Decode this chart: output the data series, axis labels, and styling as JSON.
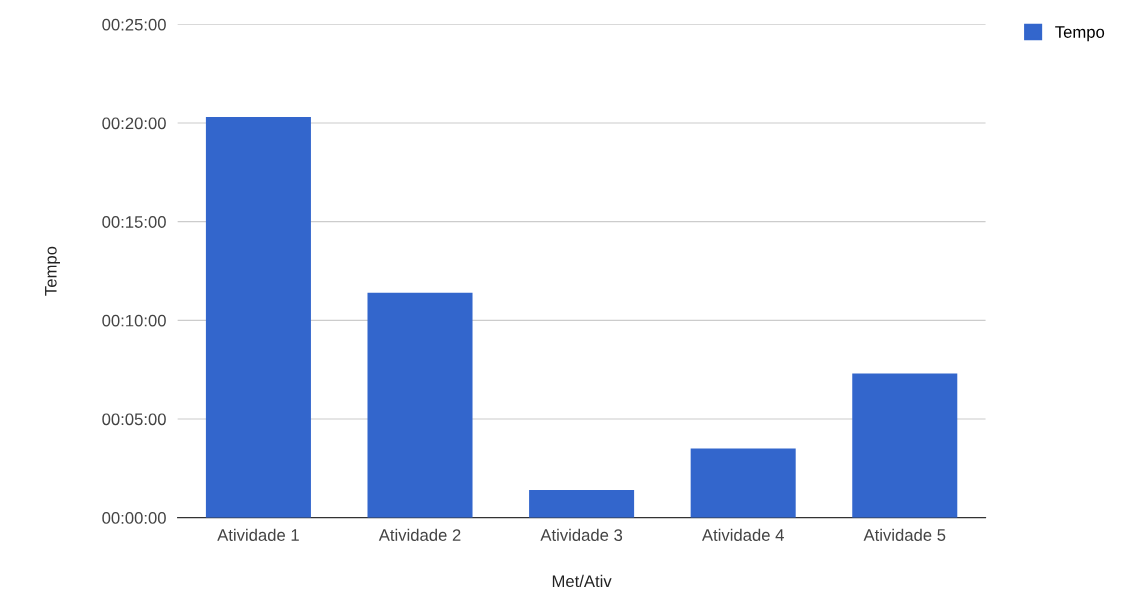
{
  "chart_data": {
    "type": "bar",
    "xlabel": "Met/Ativ",
    "ylabel": "Tempo",
    "categories": [
      "Atividade 1",
      "Atividade 2",
      "Atividade 3",
      "Atividade 4",
      "Atividade 5"
    ],
    "series": [
      {
        "name": "Tempo",
        "color": "#3366cc",
        "values": [
          20.3,
          11.4,
          1.4,
          3.5,
          7.3
        ]
      }
    ],
    "ylim": [
      0,
      25
    ],
    "yticks": [
      {
        "value": 0,
        "label": "00:00:00"
      },
      {
        "value": 5,
        "label": "00:05:00"
      },
      {
        "value": 10,
        "label": "00:10:00"
      },
      {
        "value": 15,
        "label": "00:15:00"
      },
      {
        "value": 20,
        "label": "00:20:00"
      },
      {
        "value": 25,
        "label": "00:25:00"
      }
    ],
    "grid": "y",
    "legend": "top right"
  }
}
